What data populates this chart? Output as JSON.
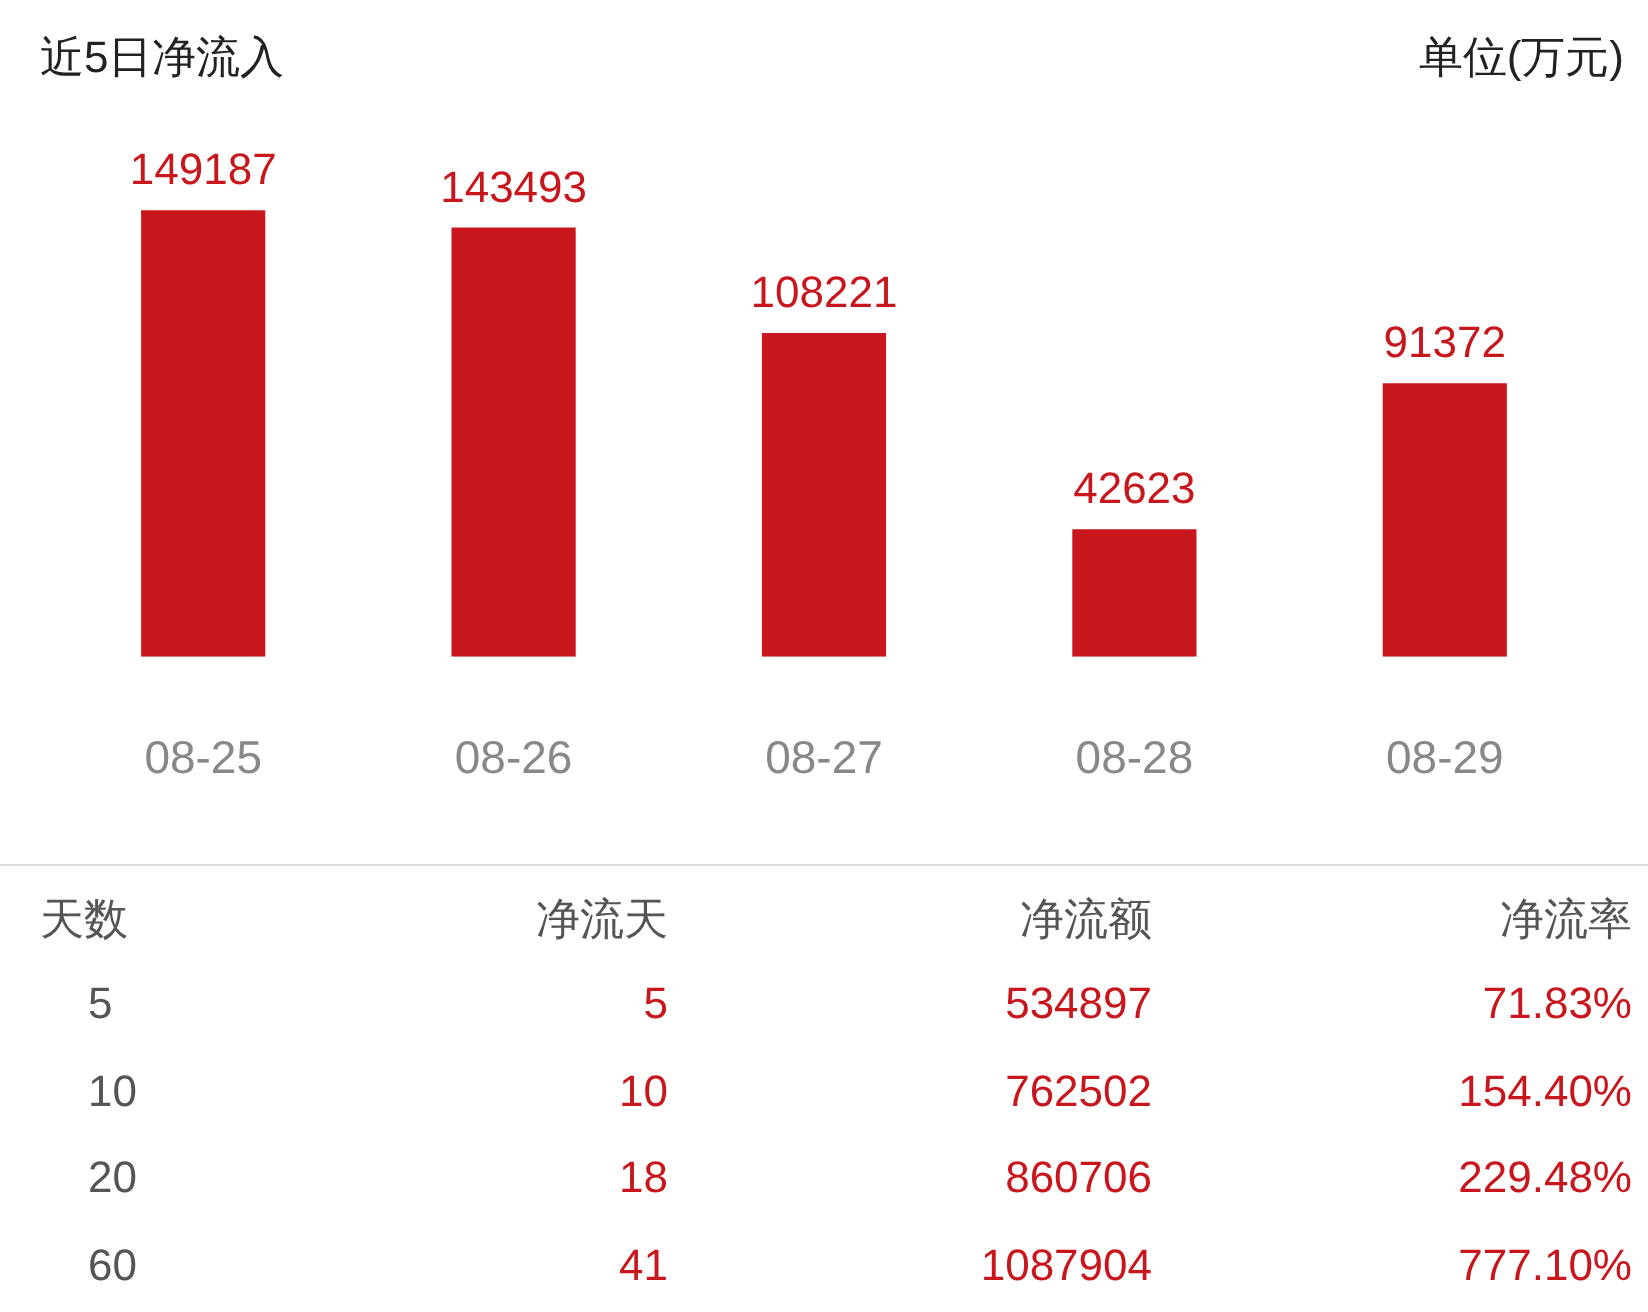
{
  "chart_data": [
    {
      "type": "bar",
      "title": "近5日净流入",
      "subtitle": "单位(万元)",
      "categories": [
        "08-25",
        "08-26",
        "08-27",
        "08-28",
        "08-29"
      ],
      "values": [
        149187,
        143493,
        108221,
        42623,
        91372
      ],
      "color": "#c8161d",
      "data_labels": true,
      "grid": false,
      "legend": false,
      "tick_labels": "x"
    },
    {
      "type": "other",
      "categories": [
        "天数",
        "净流天",
        "净流额",
        "净流率"
      ],
      "annotations": [
        "5",
        "5",
        "534897",
        "71.83%",
        "10",
        "10",
        "762502",
        "154.40%",
        "20",
        "18",
        "860706",
        "229.48%",
        "60",
        "41",
        "1087904",
        "777.10%"
      ]
    }
  ]
}
